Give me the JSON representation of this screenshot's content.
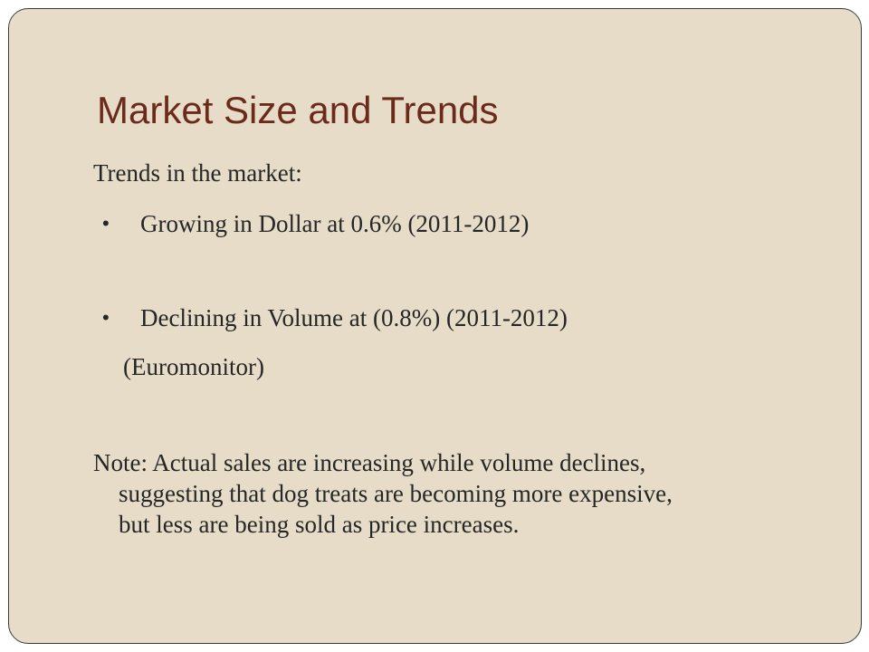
{
  "slide": {
    "title": "Market Size and Trends",
    "intro": "Trends in the market:",
    "bullets": [
      "Growing in Dollar at 0.6% (2011-2012)",
      "Declining in Volume at (0.8%) (2011-2012)"
    ],
    "bullet_glyph": "•",
    "source": "(Euromonitor)",
    "note_lines": [
      "Note: Actual sales are increasing while volume declines,",
      "suggesting that dog treats are becoming more expensive,",
      "but less are being sold as price increases."
    ],
    "colors": {
      "background": "#e6dcc8",
      "title": "#6b2b1c",
      "text": "#262626"
    }
  }
}
